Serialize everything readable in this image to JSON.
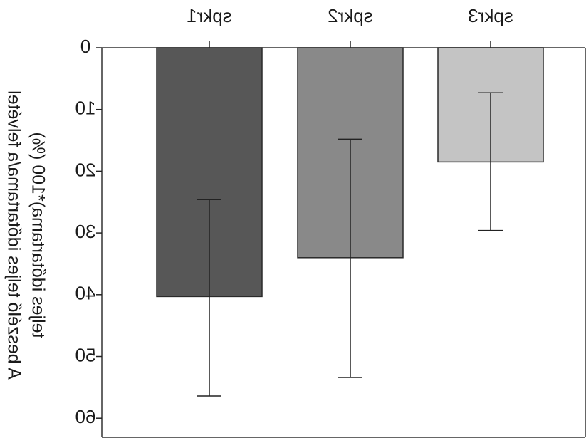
{
  "chart_data": {
    "type": "bar",
    "mirrored_horizontally": true,
    "y_axis_inverted": true,
    "categories": [
      "spkr1",
      "spkr2",
      "spkr3"
    ],
    "values": [
      40.3,
      34.0,
      18.5
    ],
    "error_bars": {
      "lower": [
        24.6,
        14.8,
        7.3
      ],
      "upper": [
        56.4,
        53.4,
        29.6
      ]
    },
    "colors": [
      "#575757",
      "#898989",
      "#c4c4c4"
    ],
    "ylim": [
      0,
      63
    ],
    "yticks": [
      0,
      10,
      20,
      30,
      40,
      50,
      60
    ],
    "ytick_labels": [
      "0",
      "10",
      "20",
      "30",
      "40",
      "50",
      "60"
    ],
    "ylabel_lines": [
      "A beszélő teljes időtartama/a felvétel",
      "teljes időtartama)*100 (%)"
    ],
    "xlabel": "",
    "title": "",
    "grid": false
  }
}
